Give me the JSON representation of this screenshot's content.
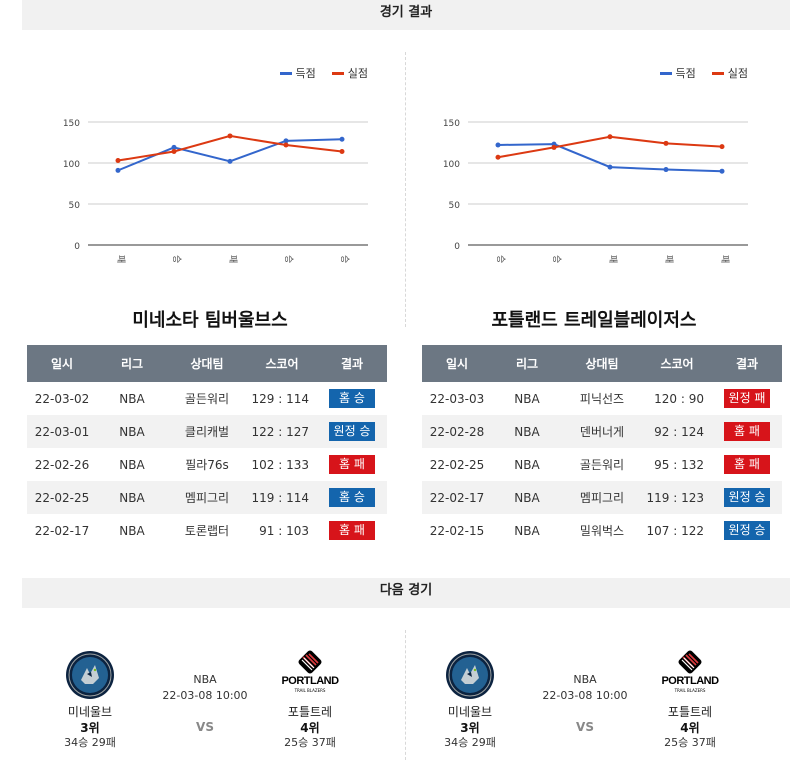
{
  "results_header": "경기 결과",
  "next_header": "다음 경기",
  "legend": {
    "scored": "득점",
    "conceded": "실점"
  },
  "colors": {
    "scored": "#3366cc",
    "conceded": "#dc3912",
    "win": "#1465ad",
    "loss": "#d7141a",
    "header_bg": "#6c7783"
  },
  "chart_data": [
    {
      "type": "line",
      "categories": [
        "패",
        "승",
        "패",
        "승",
        "승"
      ],
      "series": [
        {
          "name": "득점",
          "values": [
            91,
            119,
            102,
            127,
            129
          ]
        },
        {
          "name": "실점",
          "values": [
            103,
            114,
            133,
            122,
            114
          ]
        }
      ],
      "ylim": [
        0,
        150
      ],
      "yticks": [
        "0",
        "50",
        "100",
        "150"
      ],
      "grid": true,
      "legend": "top-right"
    },
    {
      "type": "line",
      "categories": [
        "승",
        "승",
        "패",
        "패",
        "패"
      ],
      "series": [
        {
          "name": "득점",
          "values": [
            122,
            123,
            95,
            92,
            90
          ]
        },
        {
          "name": "실점",
          "values": [
            107,
            119,
            132,
            124,
            120
          ]
        }
      ],
      "ylim": [
        0,
        150
      ],
      "yticks": [
        "0",
        "50",
        "100",
        "150"
      ],
      "grid": true,
      "legend": "top-right"
    }
  ],
  "teams": [
    {
      "title": "미네소타 팀버울브스",
      "columns": [
        "일시",
        "리그",
        "상대팀",
        "스코어",
        "결과"
      ],
      "rows": [
        {
          "date": "22-03-02",
          "league": "NBA",
          "opponent": "골든워리",
          "score": "129 : 114",
          "result": "홈 승",
          "win": true
        },
        {
          "date": "22-03-01",
          "league": "NBA",
          "opponent": "클리캐벌",
          "score": "122 : 127",
          "result": "원정 승",
          "win": true
        },
        {
          "date": "22-02-26",
          "league": "NBA",
          "opponent": "필라76s",
          "score": "102 : 133",
          "result": "홈 패",
          "win": false
        },
        {
          "date": "22-02-25",
          "league": "NBA",
          "opponent": "멤피그리",
          "score": "119 : 114",
          "result": "홈 승",
          "win": true
        },
        {
          "date": "22-02-17",
          "league": "NBA",
          "opponent": "토론랩터",
          "score": "91 : 103",
          "result": "홈 패",
          "win": false
        }
      ]
    },
    {
      "title": "포틀랜드 트레일블레이저스",
      "columns": [
        "일시",
        "리그",
        "상대팀",
        "스코어",
        "결과"
      ],
      "rows": [
        {
          "date": "22-03-03",
          "league": "NBA",
          "opponent": "피닉선즈",
          "score": "120 : 90",
          "result": "원정 패",
          "win": false
        },
        {
          "date": "22-02-28",
          "league": "NBA",
          "opponent": "덴버너게",
          "score": "92 : 124",
          "result": "홈 패",
          "win": false
        },
        {
          "date": "22-02-25",
          "league": "NBA",
          "opponent": "골든워리",
          "score": "95 : 132",
          "result": "홈 패",
          "win": false
        },
        {
          "date": "22-02-17",
          "league": "NBA",
          "opponent": "멤피그리",
          "score": "119 : 123",
          "result": "원정 승",
          "win": true
        },
        {
          "date": "22-02-15",
          "league": "NBA",
          "opponent": "밀워벅스",
          "score": "107 : 122",
          "result": "원정 승",
          "win": true
        }
      ]
    }
  ],
  "next_matches": [
    {
      "league": "NBA",
      "datetime": "22-03-08 10:00",
      "vs": "VS",
      "home": {
        "name": "미네울브",
        "rank": "3위",
        "record": "34승 29패",
        "logo_icon": "timberwolves-logo-icon"
      },
      "away": {
        "name": "포틀트레",
        "rank": "4위",
        "record": "25승 37패",
        "logo_icon": "trail-blazers-logo-icon",
        "logo_text": "PORTLAND",
        "logo_sub": "TRAIL BLAZERS"
      }
    },
    {
      "league": "NBA",
      "datetime": "22-03-08 10:00",
      "vs": "VS",
      "home": {
        "name": "미네울브",
        "rank": "3위",
        "record": "34승 29패",
        "logo_icon": "timberwolves-logo-icon"
      },
      "away": {
        "name": "포틀트레",
        "rank": "4위",
        "record": "25승 37패",
        "logo_icon": "trail-blazers-logo-icon",
        "logo_text": "PORTLAND",
        "logo_sub": "TRAIL BLAZERS"
      }
    }
  ]
}
